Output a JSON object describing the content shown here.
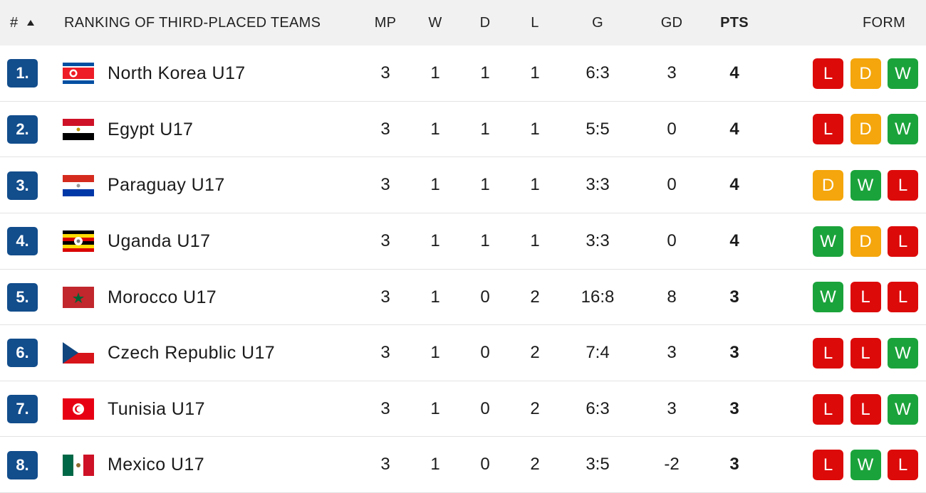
{
  "header": {
    "rank": "#",
    "team": "RANKING OF THIRD-PLACED TEAMS",
    "mp": "MP",
    "w": "W",
    "d": "D",
    "l": "L",
    "g": "G",
    "gd": "GD",
    "pts": "PTS",
    "form": "FORM"
  },
  "rows": [
    {
      "rank": "1.",
      "team": "North Korea U17",
      "mp": 3,
      "w": 1,
      "d": 1,
      "l": 1,
      "g": "6:3",
      "gd": 3,
      "pts": 4,
      "form": [
        "L",
        "D",
        "W"
      ]
    },
    {
      "rank": "2.",
      "team": "Egypt U17",
      "mp": 3,
      "w": 1,
      "d": 1,
      "l": 1,
      "g": "5:5",
      "gd": 0,
      "pts": 4,
      "form": [
        "L",
        "D",
        "W"
      ]
    },
    {
      "rank": "3.",
      "team": "Paraguay U17",
      "mp": 3,
      "w": 1,
      "d": 1,
      "l": 1,
      "g": "3:3",
      "gd": 0,
      "pts": 4,
      "form": [
        "D",
        "W",
        "L"
      ]
    },
    {
      "rank": "4.",
      "team": "Uganda U17",
      "mp": 3,
      "w": 1,
      "d": 1,
      "l": 1,
      "g": "3:3",
      "gd": 0,
      "pts": 4,
      "form": [
        "W",
        "D",
        "L"
      ]
    },
    {
      "rank": "5.",
      "team": "Morocco U17",
      "mp": 3,
      "w": 1,
      "d": 0,
      "l": 2,
      "g": "16:8",
      "gd": 8,
      "pts": 3,
      "form": [
        "W",
        "L",
        "L"
      ]
    },
    {
      "rank": "6.",
      "team": "Czech Republic U17",
      "mp": 3,
      "w": 1,
      "d": 0,
      "l": 2,
      "g": "7:4",
      "gd": 3,
      "pts": 3,
      "form": [
        "L",
        "L",
        "W"
      ]
    },
    {
      "rank": "7.",
      "team": "Tunisia U17",
      "mp": 3,
      "w": 1,
      "d": 0,
      "l": 2,
      "g": "6:3",
      "gd": 3,
      "pts": 3,
      "form": [
        "L",
        "L",
        "W"
      ]
    },
    {
      "rank": "8.",
      "team": "Mexico U17",
      "mp": 3,
      "w": 1,
      "d": 0,
      "l": 2,
      "g": "3:5",
      "gd": -2,
      "pts": 3,
      "form": [
        "L",
        "W",
        "L"
      ]
    }
  ]
}
